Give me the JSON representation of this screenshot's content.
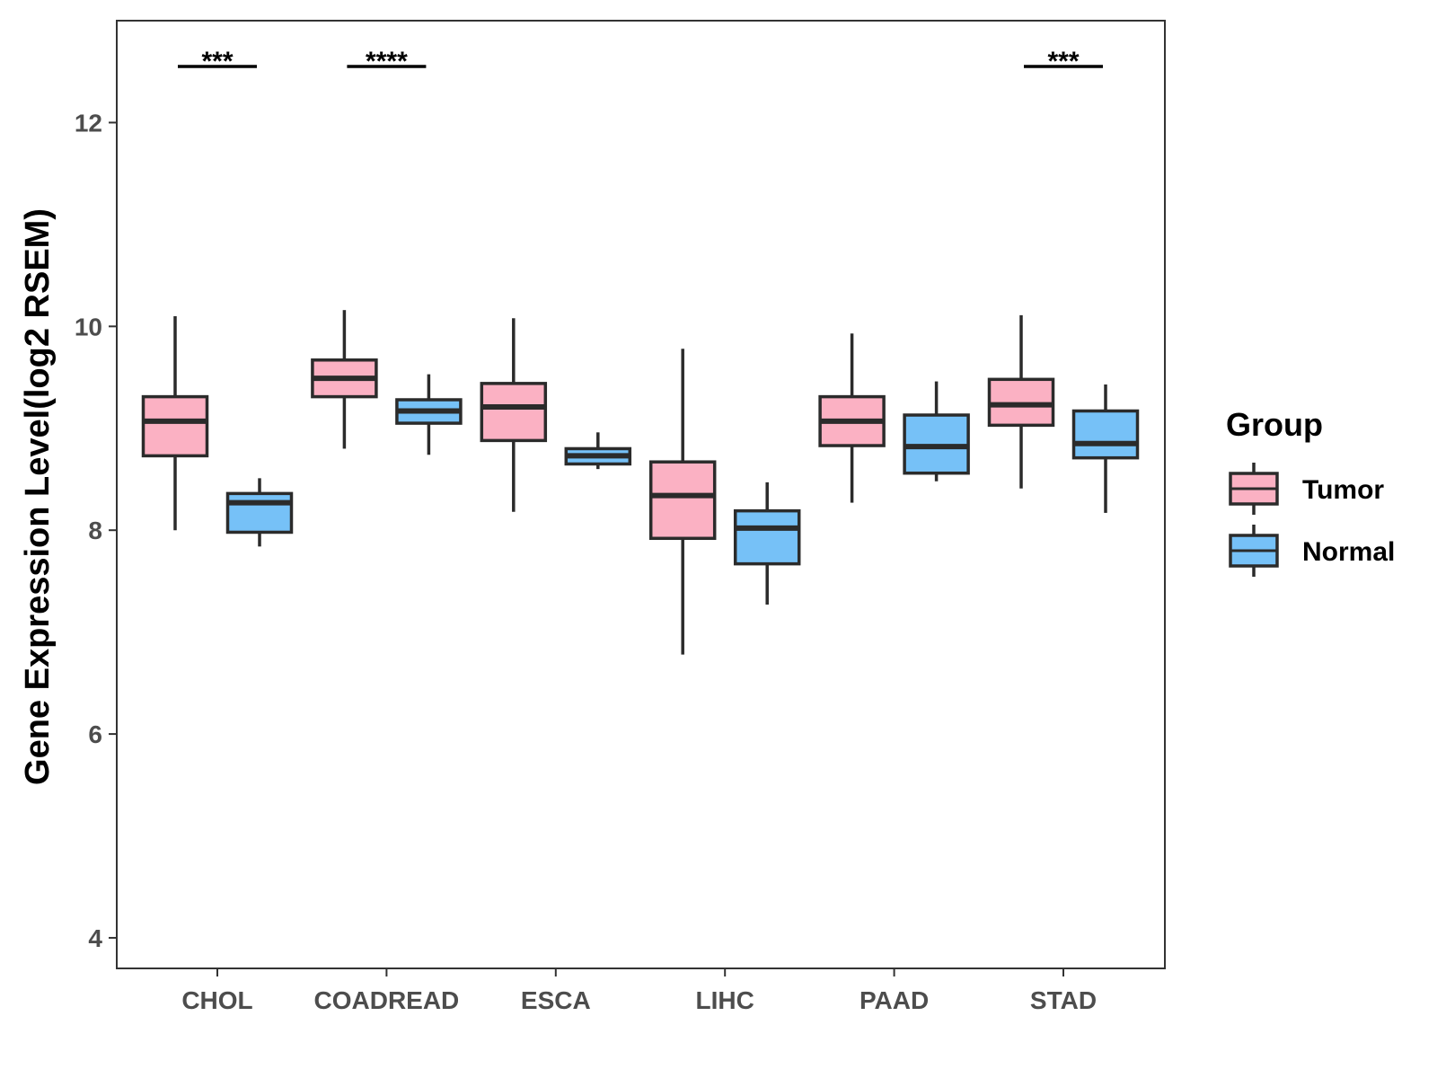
{
  "chart_data": {
    "type": "boxplot",
    "title": "",
    "xlabel": "",
    "ylabel": "Gene Expression Level(log2 RSEM)",
    "ylim": [
      3.7,
      13.0
    ],
    "yticks": [
      4,
      6,
      8,
      10,
      12
    ],
    "ytick_labels": [
      "4",
      "6",
      "8",
      "10",
      "12"
    ],
    "categories": [
      "CHOL",
      "COADREAD",
      "ESCA",
      "LIHC",
      "PAAD",
      "STAD"
    ],
    "legend": {
      "title": "Group",
      "position": "right",
      "entries": [
        {
          "name": "Tumor",
          "color": "#FBB1C3"
        },
        {
          "name": "Normal",
          "color": "#76C1F7"
        }
      ]
    },
    "series": [
      {
        "name": "Tumor",
        "color": "#FBB1C3",
        "boxes": [
          {
            "category": "CHOL",
            "whisker_low": 8.0,
            "q1": 8.73,
            "median": 9.07,
            "q3": 9.31,
            "whisker_high": 10.1
          },
          {
            "category": "COADREAD",
            "whisker_low": 8.8,
            "q1": 9.31,
            "median": 9.49,
            "q3": 9.67,
            "whisker_high": 10.16
          },
          {
            "category": "ESCA",
            "whisker_low": 8.18,
            "q1": 8.88,
            "median": 9.21,
            "q3": 9.44,
            "whisker_high": 10.08
          },
          {
            "category": "LIHC",
            "whisker_low": 6.78,
            "q1": 7.92,
            "median": 8.34,
            "q3": 8.67,
            "whisker_high": 9.78
          },
          {
            "category": "PAAD",
            "whisker_low": 8.27,
            "q1": 8.83,
            "median": 9.07,
            "q3": 9.31,
            "whisker_high": 9.93
          },
          {
            "category": "STAD",
            "whisker_low": 8.41,
            "q1": 9.03,
            "median": 9.23,
            "q3": 9.48,
            "whisker_high": 10.11
          }
        ]
      },
      {
        "name": "Normal",
        "color": "#76C1F7",
        "boxes": [
          {
            "category": "CHOL",
            "whisker_low": 7.84,
            "q1": 7.98,
            "median": 8.27,
            "q3": 8.36,
            "whisker_high": 8.51
          },
          {
            "category": "COADREAD",
            "whisker_low": 8.74,
            "q1": 9.05,
            "median": 9.17,
            "q3": 9.28,
            "whisker_high": 9.53
          },
          {
            "category": "ESCA",
            "whisker_low": 8.6,
            "q1": 8.65,
            "median": 8.73,
            "q3": 8.8,
            "whisker_high": 8.96
          },
          {
            "category": "LIHC",
            "whisker_low": 7.27,
            "q1": 7.67,
            "median": 8.02,
            "q3": 8.19,
            "whisker_high": 8.47
          },
          {
            "category": "PAAD",
            "whisker_low": 8.48,
            "q1": 8.56,
            "median": 8.82,
            "q3": 9.13,
            "whisker_high": 9.46
          },
          {
            "category": "STAD",
            "whisker_low": 8.17,
            "q1": 8.71,
            "median": 8.85,
            "q3": 9.17,
            "whisker_high": 9.43
          }
        ]
      }
    ],
    "significance": [
      {
        "category": "CHOL",
        "label": "***",
        "y": 12.55
      },
      {
        "category": "COADREAD",
        "label": "****",
        "y": 12.55
      },
      {
        "category": "STAD",
        "label": "***",
        "y": 12.55
      }
    ]
  }
}
